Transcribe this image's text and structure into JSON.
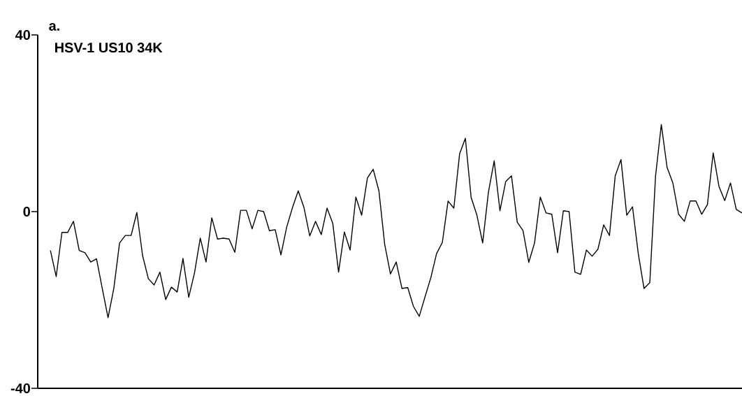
{
  "chart_data": {
    "type": "line",
    "title": "a.",
    "annotations": [
      "HSV-1 US10 34K"
    ],
    "categories": [
      null,
      null,
      null,
      null,
      null,
      null,
      null,
      null,
      null,
      null,
      null,
      null,
      null,
      null,
      null,
      null,
      null,
      null,
      null,
      null,
      null,
      null,
      null,
      null,
      null,
      null,
      null,
      null,
      null,
      null,
      null,
      null,
      null,
      null,
      null,
      null,
      null,
      null,
      null,
      null,
      null,
      null,
      null,
      null,
      null,
      null,
      null,
      null,
      null,
      null,
      null,
      null,
      null,
      null,
      null,
      null,
      null,
      null,
      null,
      null,
      null,
      null,
      null,
      null,
      null,
      null,
      null,
      null,
      null,
      null,
      null,
      null,
      null,
      null,
      null,
      null,
      null,
      null,
      null,
      null,
      null,
      null,
      null,
      null,
      null,
      null,
      null,
      null,
      null,
      null,
      null,
      null,
      null,
      null,
      null,
      null,
      null,
      null,
      null,
      null,
      null,
      null,
      null,
      null,
      null,
      null,
      null,
      null,
      null,
      null,
      null,
      null,
      null,
      null,
      null,
      null,
      null,
      null,
      null,
      null,
      null
    ],
    "series": [
      {
        "color": "#000000",
        "values": [
          -8.8,
          -14.7,
          -4.7,
          -4.7,
          -2.2,
          -8.8,
          -9.3,
          -11.4,
          -10.7,
          -17.4,
          -24.0,
          -17.4,
          -7.1,
          -5.4,
          -5.4,
          -0.2,
          -10.0,
          -15.2,
          -16.6,
          -13.7,
          -19.9,
          -17.1,
          -18.2,
          -10.6,
          -19.4,
          -13.9,
          -6.0,
          -11.4,
          -1.4,
          -6.2,
          -6.0,
          -6.2,
          -9.2,
          0.3,
          0.3,
          -3.9,
          0.3,
          0,
          -4.3,
          -4.1,
          -9.8,
          -3.5,
          0.9,
          4.7,
          0.9,
          -5.5,
          -2.2,
          -5.2,
          0.8,
          -2.7,
          -13.7,
          -4.6,
          -8.7,
          3.3,
          -0.8,
          7.6,
          9.6,
          4.7,
          -7.4,
          -14.1,
          -11.4,
          -17.4,
          -17.2,
          -21.5,
          -23.7,
          -19.3,
          -15.0,
          -9.5,
          -7.0,
          2.4,
          0.8,
          13.1,
          16.6,
          3.2,
          -0.8,
          -7.1,
          4.4,
          11.5,
          0.2,
          6.8,
          8.1,
          -2.4,
          -4.3,
          -11.5,
          -7.1,
          3.3,
          -0.3,
          -0.6,
          -9.3,
          0.2,
          0,
          -13.7,
          -14.2,
          -8.7,
          -10.1,
          -8.5,
          -3.0,
          -5.4,
          8.1,
          11.8,
          -0.8,
          1.1,
          -9.5,
          -17.4,
          -16.1,
          8.1,
          19.7,
          10.0,
          6.5,
          -0.6,
          -2.2,
          2.4,
          2.4,
          -0.6,
          1.6,
          13.3,
          5.7,
          2.5,
          6.5,
          0.5,
          -0.3
        ]
      }
    ],
    "ylim": [
      -40,
      40
    ],
    "yticks": [
      -40,
      0,
      40
    ],
    "tick_labels": "y",
    "marker": "none",
    "line_style": "solid"
  }
}
